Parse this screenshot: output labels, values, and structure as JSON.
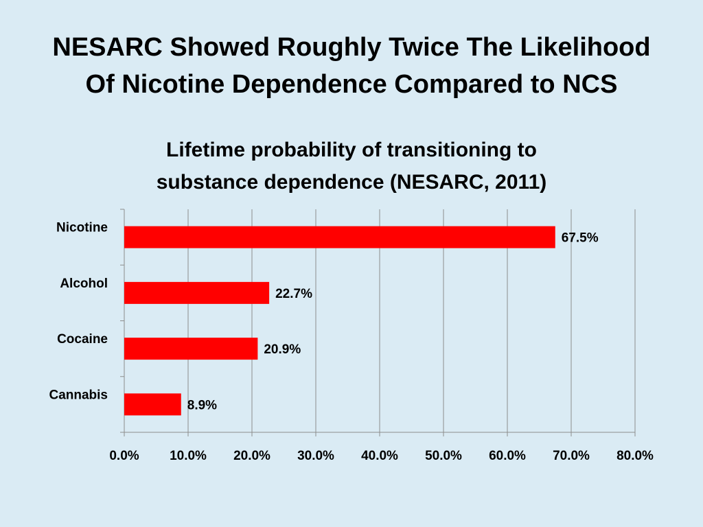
{
  "slide": {
    "title_line1": "NESARC Showed Roughly Twice The Likelihood",
    "title_line2": "Of Nicotine Dependence Compared to NCS"
  },
  "chart_data": {
    "type": "bar",
    "orientation": "horizontal",
    "title_lines": [
      "Lifetime probability of transitioning to",
      "substance dependence (NESARC, 2011)"
    ],
    "categories": [
      "Nicotine",
      "Alcohol",
      "Cocaine",
      "Cannabis"
    ],
    "values": [
      67.5,
      22.7,
      20.9,
      8.9
    ],
    "data_labels": [
      "67.5%",
      "22.7%",
      "20.9%",
      "8.9%"
    ],
    "x_ticks": [
      "0.0%",
      "10.0%",
      "20.0%",
      "30.0%",
      "40.0%",
      "50.0%",
      "60.0%",
      "70.0%",
      "80.0%"
    ],
    "xlim": [
      0,
      80
    ],
    "grid": true,
    "bar_color": "#ff0000",
    "xlabel": "",
    "ylabel": ""
  }
}
